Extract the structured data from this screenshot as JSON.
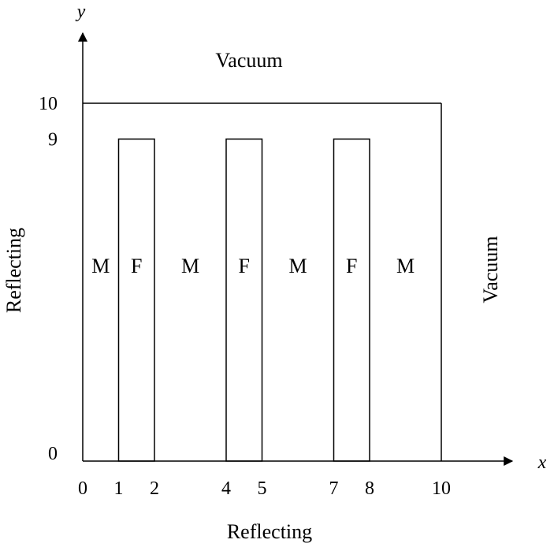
{
  "axes": {
    "x_label": "x",
    "y_label": "y",
    "x_ticks": [
      "0",
      "1",
      "2",
      "4",
      "5",
      "7",
      "8",
      "10"
    ],
    "y_ticks": [
      "0",
      "9",
      "10"
    ]
  },
  "domain": {
    "x_range": [
      0,
      10
    ],
    "y_range": [
      0,
      10
    ],
    "fuel_height": 9
  },
  "boundaries": {
    "top": "Vacuum",
    "right": "Vacuum",
    "left": "Reflecting",
    "bottom": "Reflecting"
  },
  "regions": [
    {
      "label": "M",
      "x_start": 0,
      "x_end": 1
    },
    {
      "label": "F",
      "x_start": 1,
      "x_end": 2
    },
    {
      "label": "M",
      "x_start": 2,
      "x_end": 4
    },
    {
      "label": "F",
      "x_start": 4,
      "x_end": 5
    },
    {
      "label": "M",
      "x_start": 5,
      "x_end": 7
    },
    {
      "label": "F",
      "x_start": 7,
      "x_end": 8
    },
    {
      "label": "M",
      "x_start": 8,
      "x_end": 10
    }
  ]
}
